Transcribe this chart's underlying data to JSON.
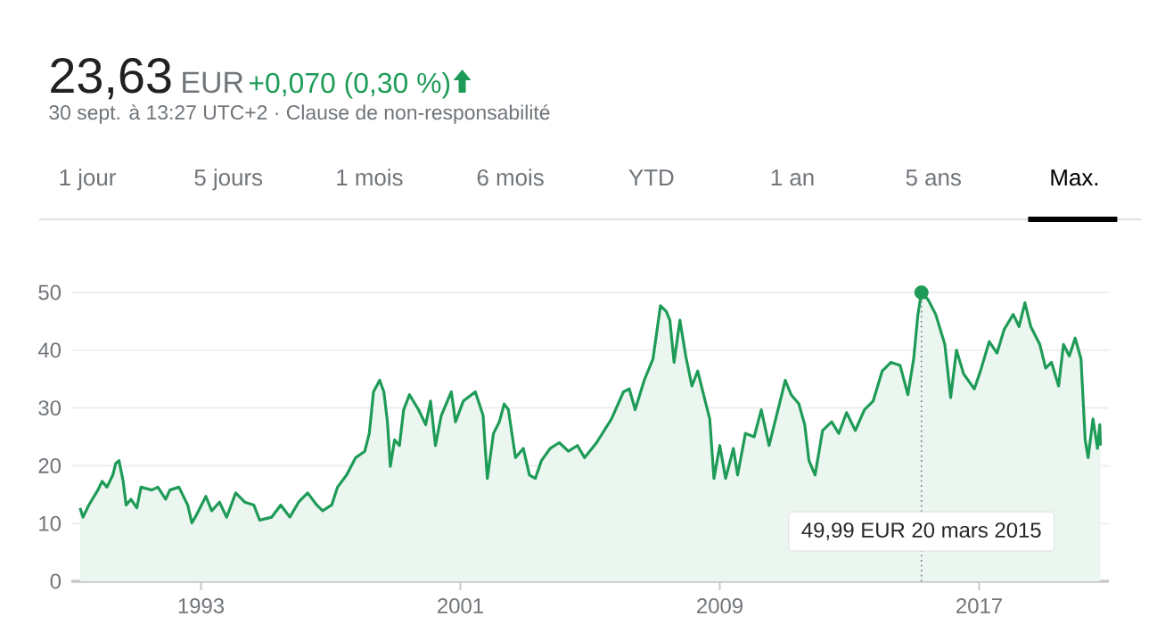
{
  "chart_data": {
    "type": "area",
    "title": "23,63",
    "subtitle": "30 sept. à 13:27 UTC+2 · Clause de non-responsabilité",
    "annotations": [
      "EUR",
      "+0,070 (0,30 %)",
      "49,99 EUR  20 mars 2015",
      "1 jour",
      "5 jours",
      "1 mois",
      "6 mois",
      "YTD",
      "1 an",
      "5 ans",
      "Max."
    ],
    "ref_lines": [
      {
        "axis": "x",
        "value": 2015.22,
        "color": "#70757a",
        "line_style": "dotted"
      }
    ],
    "color": "#1f9b58",
    "series": [
      {
        "type": "scatter",
        "color": "#1f9b58",
        "x": [
          2015.22
        ],
        "values": [
          49.99
        ]
      }
    ],
    "grid": "y",
    "xlim": [
      1989.0,
      2021.0
    ],
    "ylim": [
      0,
      50
    ],
    "xticks": [
      1993,
      2001,
      2009,
      2017
    ],
    "yticks": [
      0,
      10,
      20,
      30,
      40,
      50
    ],
    "x": [
      1989.27,
      1989.36,
      1989.54,
      1989.82,
      1989.95,
      1990.1,
      1990.28,
      1990.37,
      1990.47,
      1990.6,
      1990.69,
      1990.84,
      1991.02,
      1991.15,
      1991.48,
      1991.67,
      1991.91,
      1992.04,
      1992.32,
      1992.59,
      1992.72,
      1992.87,
      1993.15,
      1993.33,
      1993.57,
      1993.79,
      1994.07,
      1994.35,
      1994.63,
      1994.81,
      1995.18,
      1995.46,
      1995.74,
      1996.01,
      1996.29,
      1996.57,
      1996.75,
      1997.03,
      1997.21,
      1997.49,
      1997.77,
      1998.05,
      1998.19,
      1998.32,
      1998.51,
      1998.64,
      1998.75,
      1998.84,
      1998.97,
      1999.12,
      1999.25,
      1999.43,
      1999.71,
      1999.93,
      2000.08,
      2000.23,
      2000.41,
      2000.72,
      2000.85,
      2001.09,
      2001.46,
      2001.7,
      2001.83,
      2002.02,
      2002.2,
      2002.35,
      2002.48,
      2002.7,
      2002.94,
      2003.13,
      2003.31,
      2003.5,
      2003.77,
      2004.05,
      2004.33,
      2004.61,
      2004.83,
      2005.2,
      2005.66,
      2006.03,
      2006.21,
      2006.39,
      2006.67,
      2006.94,
      2007.17,
      2007.35,
      2007.46,
      2007.59,
      2007.77,
      2007.95,
      2008.14,
      2008.32,
      2008.5,
      2008.69,
      2008.82,
      2009.0,
      2009.18,
      2009.42,
      2009.55,
      2009.79,
      2010.06,
      2010.28,
      2010.52,
      2010.84,
      2011.02,
      2011.2,
      2011.44,
      2011.62,
      2011.75,
      2011.94,
      2012.17,
      2012.45,
      2012.67,
      2012.91,
      2013.18,
      2013.46,
      2013.73,
      2014.01,
      2014.28,
      2014.56,
      2014.8,
      2014.98,
      2015.11,
      2015.22,
      2015.42,
      2015.66,
      2015.94,
      2016.12,
      2016.3,
      2016.52,
      2016.85,
      2017.04,
      2017.31,
      2017.55,
      2017.77,
      2018.05,
      2018.23,
      2018.41,
      2018.59,
      2018.87,
      2019.05,
      2019.23,
      2019.45,
      2019.6,
      2019.78,
      2019.96,
      2020.14,
      2020.27,
      2020.36,
      2020.51,
      2020.65,
      2020.72,
      2020.74
    ],
    "values": [
      12.7,
      11.1,
      13.2,
      15.8,
      17.3,
      16.3,
      18.4,
      20.4,
      20.9,
      17.3,
      13.2,
      14.2,
      12.7,
      16.3,
      15.8,
      16.3,
      14.2,
      15.8,
      16.3,
      13.2,
      10.1,
      11.6,
      14.7,
      12.2,
      13.7,
      11.1,
      15.3,
      13.7,
      13.2,
      10.6,
      11.1,
      13.2,
      11.1,
      13.7,
      15.3,
      13.2,
      12.2,
      13.2,
      16.3,
      18.4,
      21.4,
      22.5,
      25.6,
      32.8,
      34.8,
      32.8,
      27.6,
      19.9,
      24.5,
      23.5,
      29.7,
      32.3,
      29.7,
      27.1,
      31.2,
      23.5,
      28.7,
      32.8,
      27.6,
      31.2,
      32.8,
      28.7,
      17.8,
      25.6,
      27.6,
      30.7,
      29.7,
      21.4,
      23.0,
      18.4,
      17.8,
      20.9,
      23.0,
      24.0,
      22.5,
      23.5,
      21.4,
      24.0,
      28.1,
      32.8,
      33.3,
      29.7,
      34.8,
      38.5,
      47.7,
      46.7,
      45.2,
      37.9,
      45.2,
      39.0,
      33.8,
      36.4,
      32.3,
      28.1,
      17.8,
      23.5,
      17.8,
      23.0,
      18.4,
      25.6,
      25.0,
      29.7,
      23.5,
      30.7,
      34.8,
      32.3,
      30.7,
      27.1,
      20.9,
      18.4,
      26.1,
      27.6,
      25.6,
      29.2,
      26.1,
      29.7,
      31.2,
      36.4,
      37.9,
      37.4,
      32.3,
      38.5,
      46.2,
      49.99,
      48.8,
      46.2,
      41.0,
      31.8,
      40.0,
      35.9,
      33.3,
      36.4,
      41.5,
      39.5,
      43.6,
      46.2,
      44.1,
      48.2,
      44.1,
      41.0,
      36.9,
      37.9,
      33.8,
      41.0,
      39.0,
      42.1,
      38.5,
      24.5,
      21.4,
      28.1,
      23.0,
      27.1,
      23.5
    ]
  }
}
